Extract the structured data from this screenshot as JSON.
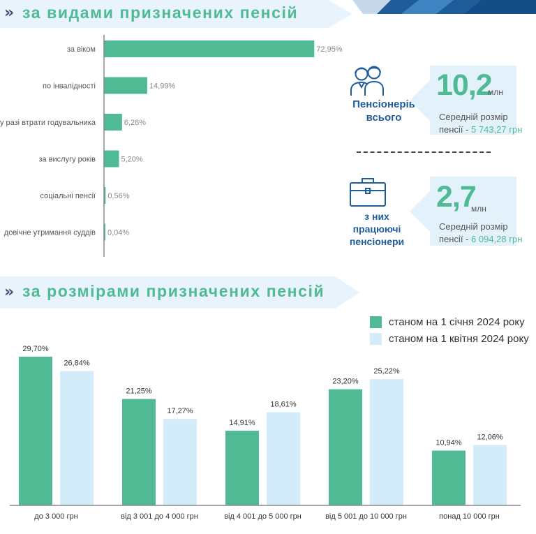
{
  "colors": {
    "green": "#4fba93",
    "light_blue": "#d4ecfa",
    "navy": "#1f5d9b",
    "banner": "#e8f3fb",
    "chevron": "#42537a"
  },
  "section1": {
    "chevron": "»",
    "title": "за видами призначених пенсій"
  },
  "section2": {
    "chevron": "»",
    "title": "за розмірами призначених пенсій"
  },
  "stats": {
    "total": {
      "caption_lines": [
        "Пенсіонерів",
        "всього"
      ],
      "icon": "people-icon",
      "value": "10,2",
      "unit": "млн",
      "desc_line1": "Середній розмір",
      "desc_prefix": "пенсії - ",
      "desc_amount": "5 743,27 грн"
    },
    "working": {
      "caption_lines": [
        "з них",
        "працюючі",
        "пенсіонери"
      ],
      "icon": "briefcase-icon",
      "value": "2,7",
      "unit": "млн",
      "desc_line1": "Середній розмір",
      "desc_prefix": "пенсії - ",
      "desc_amount": "6 094,28 грн"
    }
  },
  "chart_data": [
    {
      "type": "bar",
      "orientation": "horizontal",
      "title": "за видами призначених пенсій",
      "categories": [
        "за віком",
        "по інвалідності",
        "у разі втрати годувальника",
        "за вислугу років",
        "соціальні пенсії",
        "довічне утримання суддів"
      ],
      "values": [
        72.95,
        14.99,
        6.26,
        5.2,
        0.56,
        0.04
      ],
      "labels": [
        "72,95%",
        "14,99%",
        "6,26%",
        "5,20%",
        "0,56%",
        "0,04%"
      ],
      "unit": "%",
      "xlim": [
        0,
        100
      ],
      "grid": false
    },
    {
      "type": "bar",
      "orientation": "vertical",
      "title": "за розмірами призначених пенсій",
      "categories": [
        "до 3 000 грн",
        "від 3 001 до 4 000 грн",
        "від 4 001 до 5 000 грн",
        "від 5 001 до 10 000 грн",
        "понад 10 000 грн"
      ],
      "series": [
        {
          "name": "станом на 1 січня 2024 року",
          "values": [
            29.7,
            21.25,
            14.91,
            23.2,
            10.94
          ],
          "labels": [
            "29,70%",
            "21,25%",
            "14,91%",
            "23,20%",
            "10,94%"
          ]
        },
        {
          "name": "станом на 1 квітня 2024 року",
          "values": [
            26.84,
            17.27,
            18.61,
            25.22,
            12.06
          ],
          "labels": [
            "26,84%",
            "17,27%",
            "18,61%",
            "25,22%",
            "12,06%"
          ]
        }
      ],
      "ylim": [
        0,
        29.7
      ],
      "legend": "top-right",
      "grid": false
    }
  ]
}
